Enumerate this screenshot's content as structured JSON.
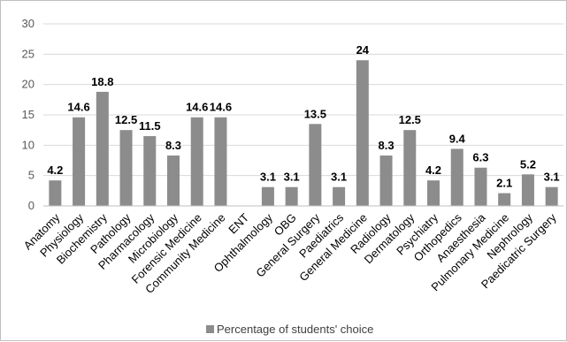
{
  "chart_data": {
    "type": "bar",
    "categories": [
      "Anatomy",
      "Physiology",
      "Biochemistry",
      "Pathology",
      "Pharmacology",
      "Microbiology",
      "Forensic Medicine",
      "Community Medicine",
      "ENT",
      "Ophthalmology",
      "OBG",
      "General Surgery",
      "Paediatrics",
      "General Medicine",
      "Radiology",
      "Dermatology",
      "Psychiatry",
      "Orthopedics",
      "Anaesthesia",
      "Pulmonary Medicine",
      "Nephrology",
      "Paedicatric Surgery"
    ],
    "series": [
      {
        "name": "Percentage of students' choice",
        "values": [
          4.2,
          14.6,
          18.8,
          12.5,
          11.5,
          8.3,
          14.6,
          14.6,
          0,
          3.1,
          3.1,
          13.5,
          3.1,
          24,
          8.3,
          12.5,
          4.2,
          9.4,
          6.3,
          2.1,
          5.2,
          3.1
        ],
        "data_labels": [
          "4.2",
          "14.6",
          "18.8",
          "12.5",
          "11.5",
          "8.3",
          "14.6",
          "14.6",
          "",
          "3.1",
          "3.1",
          "13.5",
          "3.1",
          "24",
          "8.3",
          "12.5",
          "4.2",
          "9.4",
          "6.3",
          "2.1",
          "5.2",
          "3.1"
        ]
      }
    ],
    "title": "",
    "xlabel": "",
    "ylabel": "",
    "ylim": [
      0,
      30
    ],
    "yticks": [
      "0",
      "5",
      "10",
      "15",
      "20",
      "25",
      "30"
    ],
    "grid": true,
    "legend_position": "bottom",
    "colors": {
      "bar": "#8c8c8c",
      "grid": "#d9d9d9",
      "axis": "#bfbfbf"
    }
  }
}
